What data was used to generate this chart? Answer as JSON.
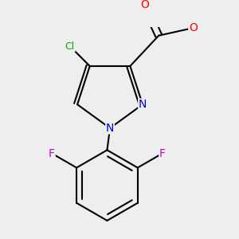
{
  "background_color": "#eeeeee",
  "bond_color": "#000000",
  "bond_width": 1.5,
  "atom_colors": {
    "O": "#ff0000",
    "N": "#0000cc",
    "Cl": "#00aa00",
    "F": "#cc00cc",
    "C": "#000000"
  },
  "figsize": [
    3.0,
    3.0
  ],
  "dpi": 100
}
